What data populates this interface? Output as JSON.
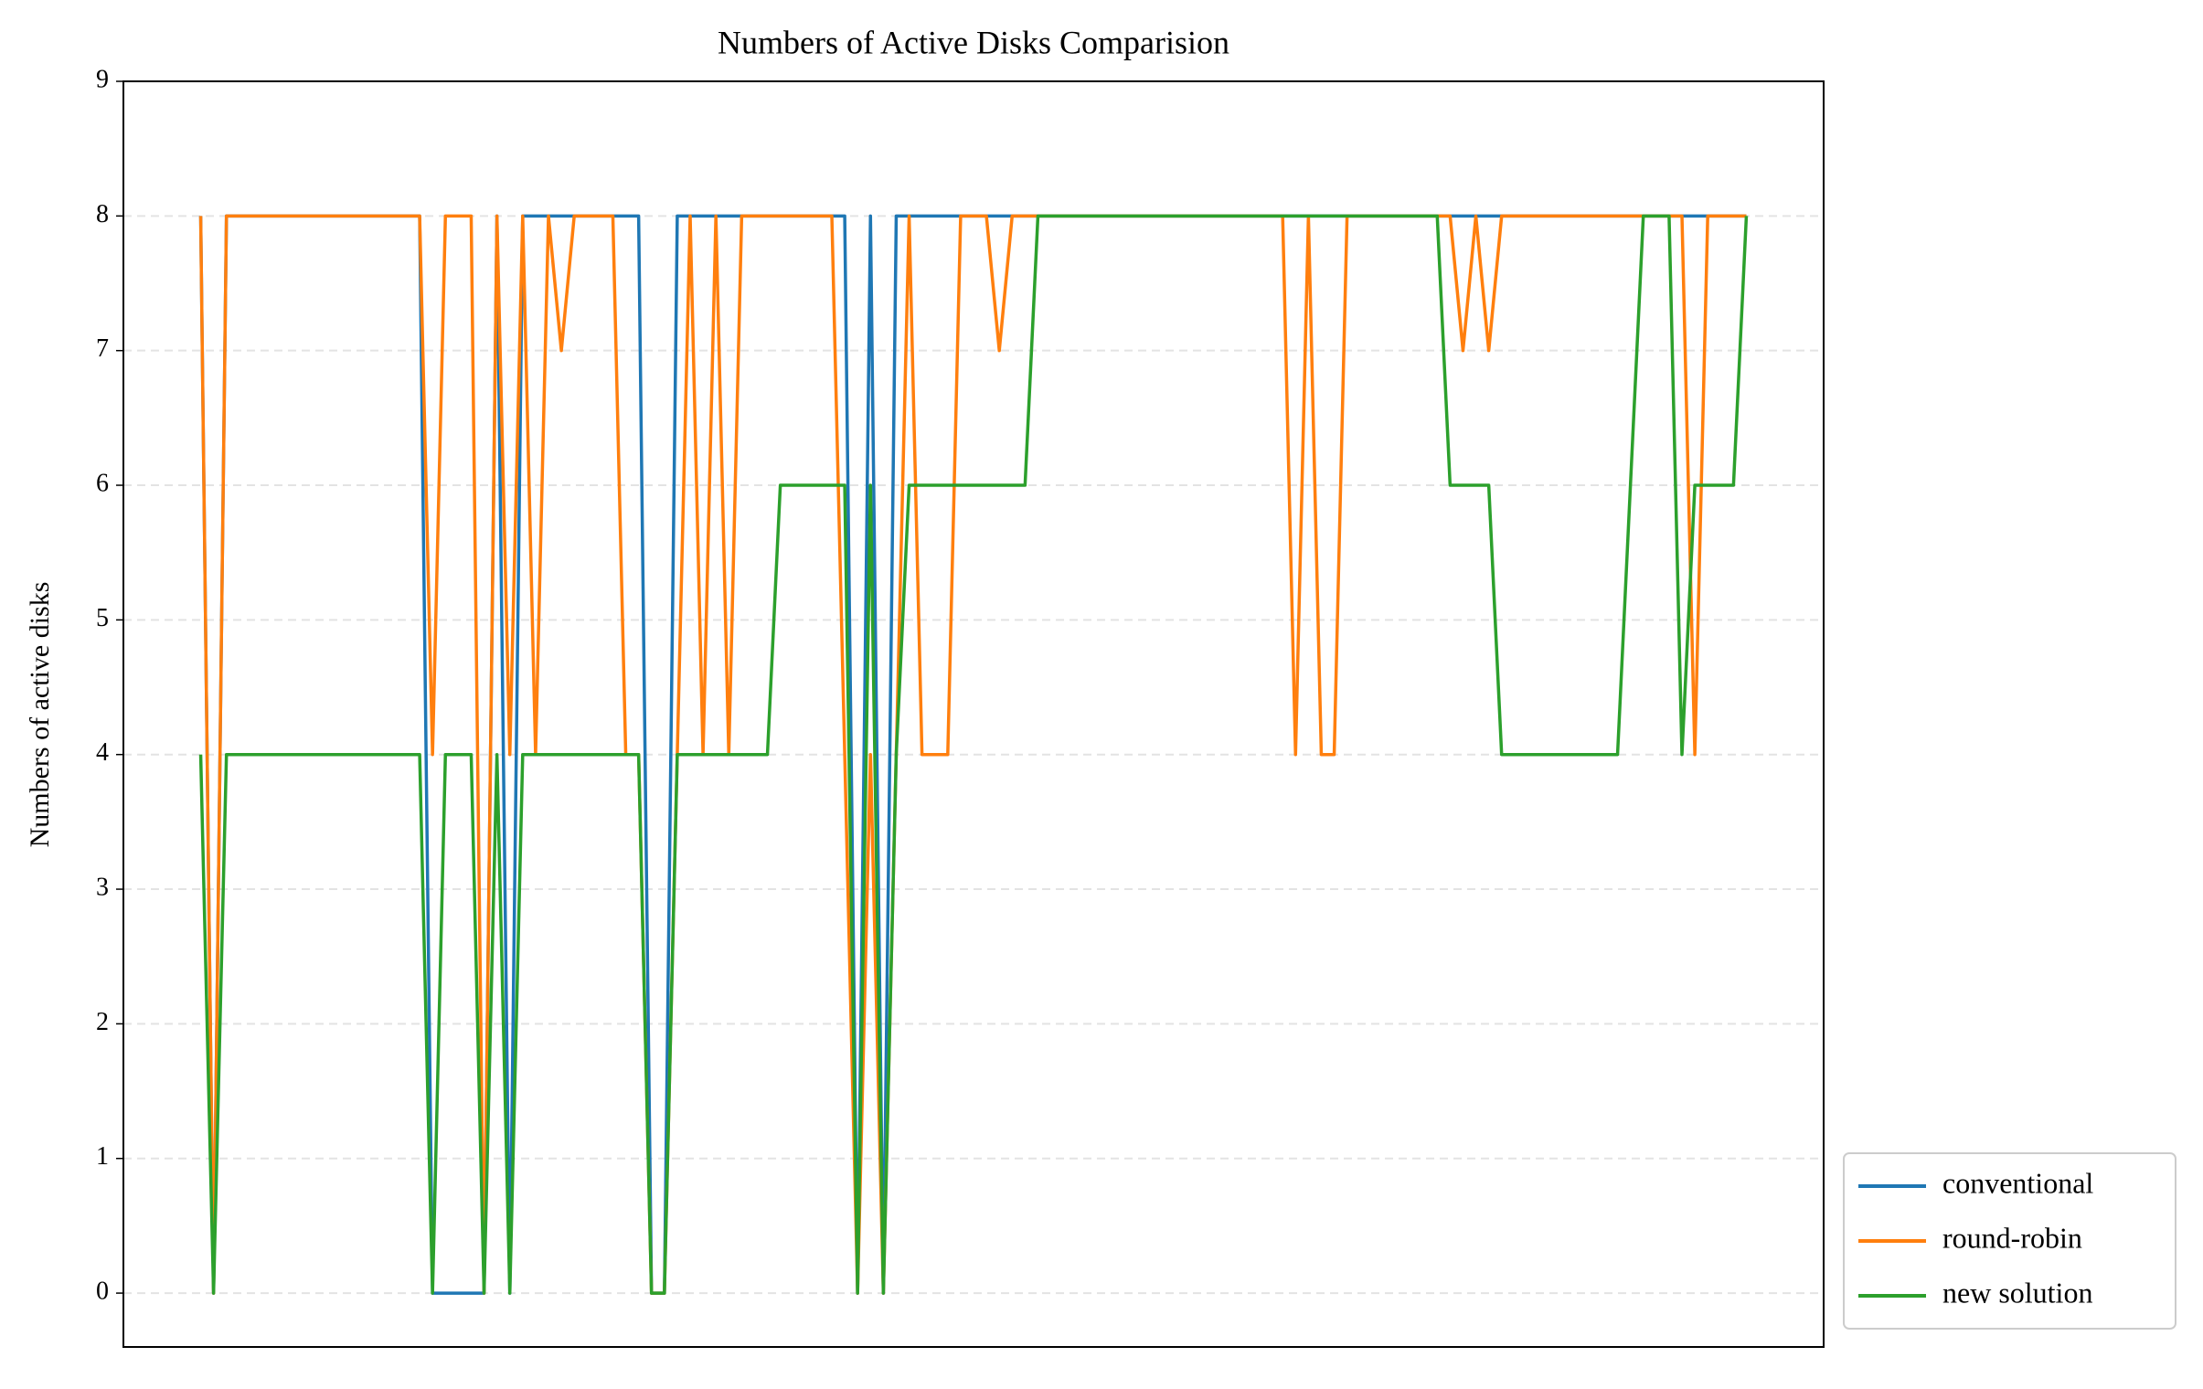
{
  "chart_data": {
    "type": "line",
    "title": "Numbers of Active Disks Comparision",
    "y_label": "Numbers of active disks",
    "ylim": [
      -0.4,
      9
    ],
    "yticks": [
      0,
      1,
      2,
      3,
      4,
      5,
      6,
      7,
      8,
      9
    ],
    "grid": true,
    "legend_position": "lower right outside",
    "series": [
      {
        "name": "conventional",
        "color": "#1f77b4",
        "values": [
          8,
          0,
          8,
          8,
          8,
          8,
          8,
          8,
          8,
          8,
          8,
          8,
          8,
          8,
          8,
          8,
          8,
          8,
          0,
          0,
          0,
          0,
          0,
          8,
          0,
          8,
          8,
          8,
          8,
          8,
          8,
          8,
          8,
          8,
          8,
          0,
          0,
          8,
          8,
          8,
          8,
          8,
          8,
          8,
          8,
          8,
          8,
          8,
          8,
          8,
          8,
          0,
          8,
          0,
          8,
          8,
          8,
          8,
          8,
          8,
          8,
          8,
          8,
          8,
          8,
          8,
          8,
          8,
          8,
          8,
          8,
          8,
          8,
          8,
          8,
          8,
          8,
          8,
          8,
          8,
          8,
          8,
          8,
          8,
          8,
          8,
          8,
          8,
          8,
          8,
          8,
          8,
          8,
          8,
          8,
          8,
          8,
          8,
          8,
          8,
          8,
          8,
          8,
          8,
          8,
          8,
          8,
          8,
          8,
          8,
          8,
          8,
          8,
          8,
          8,
          8,
          8,
          8,
          8,
          8,
          8
        ]
      },
      {
        "name": "round-robin",
        "color": "#ff7f0e",
        "values": [
          8,
          0,
          8,
          8,
          8,
          8,
          8,
          8,
          8,
          8,
          8,
          8,
          8,
          8,
          8,
          8,
          8,
          8,
          4,
          8,
          8,
          8,
          0,
          8,
          4,
          8,
          4,
          8,
          7,
          8,
          8,
          8,
          8,
          4,
          4,
          0,
          0,
          4,
          8,
          4,
          8,
          4,
          8,
          8,
          8,
          8,
          8,
          8,
          8,
          8,
          4,
          0,
          4,
          0,
          4,
          8,
          4,
          4,
          4,
          8,
          8,
          8,
          7,
          8,
          8,
          8,
          8,
          8,
          8,
          8,
          8,
          8,
          8,
          8,
          8,
          8,
          8,
          8,
          8,
          8,
          8,
          8,
          8,
          8,
          8,
          4,
          8,
          4,
          4,
          8,
          8,
          8,
          8,
          8,
          8,
          8,
          8,
          8,
          7,
          8,
          7,
          8,
          8,
          8,
          8,
          8,
          8,
          8,
          8,
          8,
          8,
          8,
          8,
          8,
          8,
          8,
          4,
          8,
          8,
          8,
          8
        ]
      },
      {
        "name": "new solution",
        "color": "#2ca02c",
        "values": [
          4,
          0,
          4,
          4,
          4,
          4,
          4,
          4,
          4,
          4,
          4,
          4,
          4,
          4,
          4,
          4,
          4,
          4,
          0,
          4,
          4,
          4,
          0,
          4,
          0,
          4,
          4,
          4,
          4,
          4,
          4,
          4,
          4,
          4,
          4,
          0,
          0,
          4,
          4,
          4,
          4,
          4,
          4,
          4,
          4,
          6,
          6,
          6,
          6,
          6,
          6,
          0,
          6,
          0,
          4,
          6,
          6,
          6,
          6,
          6,
          6,
          6,
          6,
          6,
          6,
          8,
          8,
          8,
          8,
          8,
          8,
          8,
          8,
          8,
          8,
          8,
          8,
          8,
          8,
          8,
          8,
          8,
          8,
          8,
          8,
          8,
          8,
          8,
          8,
          8,
          8,
          8,
          8,
          8,
          8,
          8,
          8,
          6,
          6,
          6,
          6,
          4,
          4,
          4,
          4,
          4,
          4,
          4,
          4,
          4,
          4,
          6,
          8,
          8,
          8,
          4,
          6,
          6,
          6,
          6,
          8
        ]
      }
    ]
  }
}
